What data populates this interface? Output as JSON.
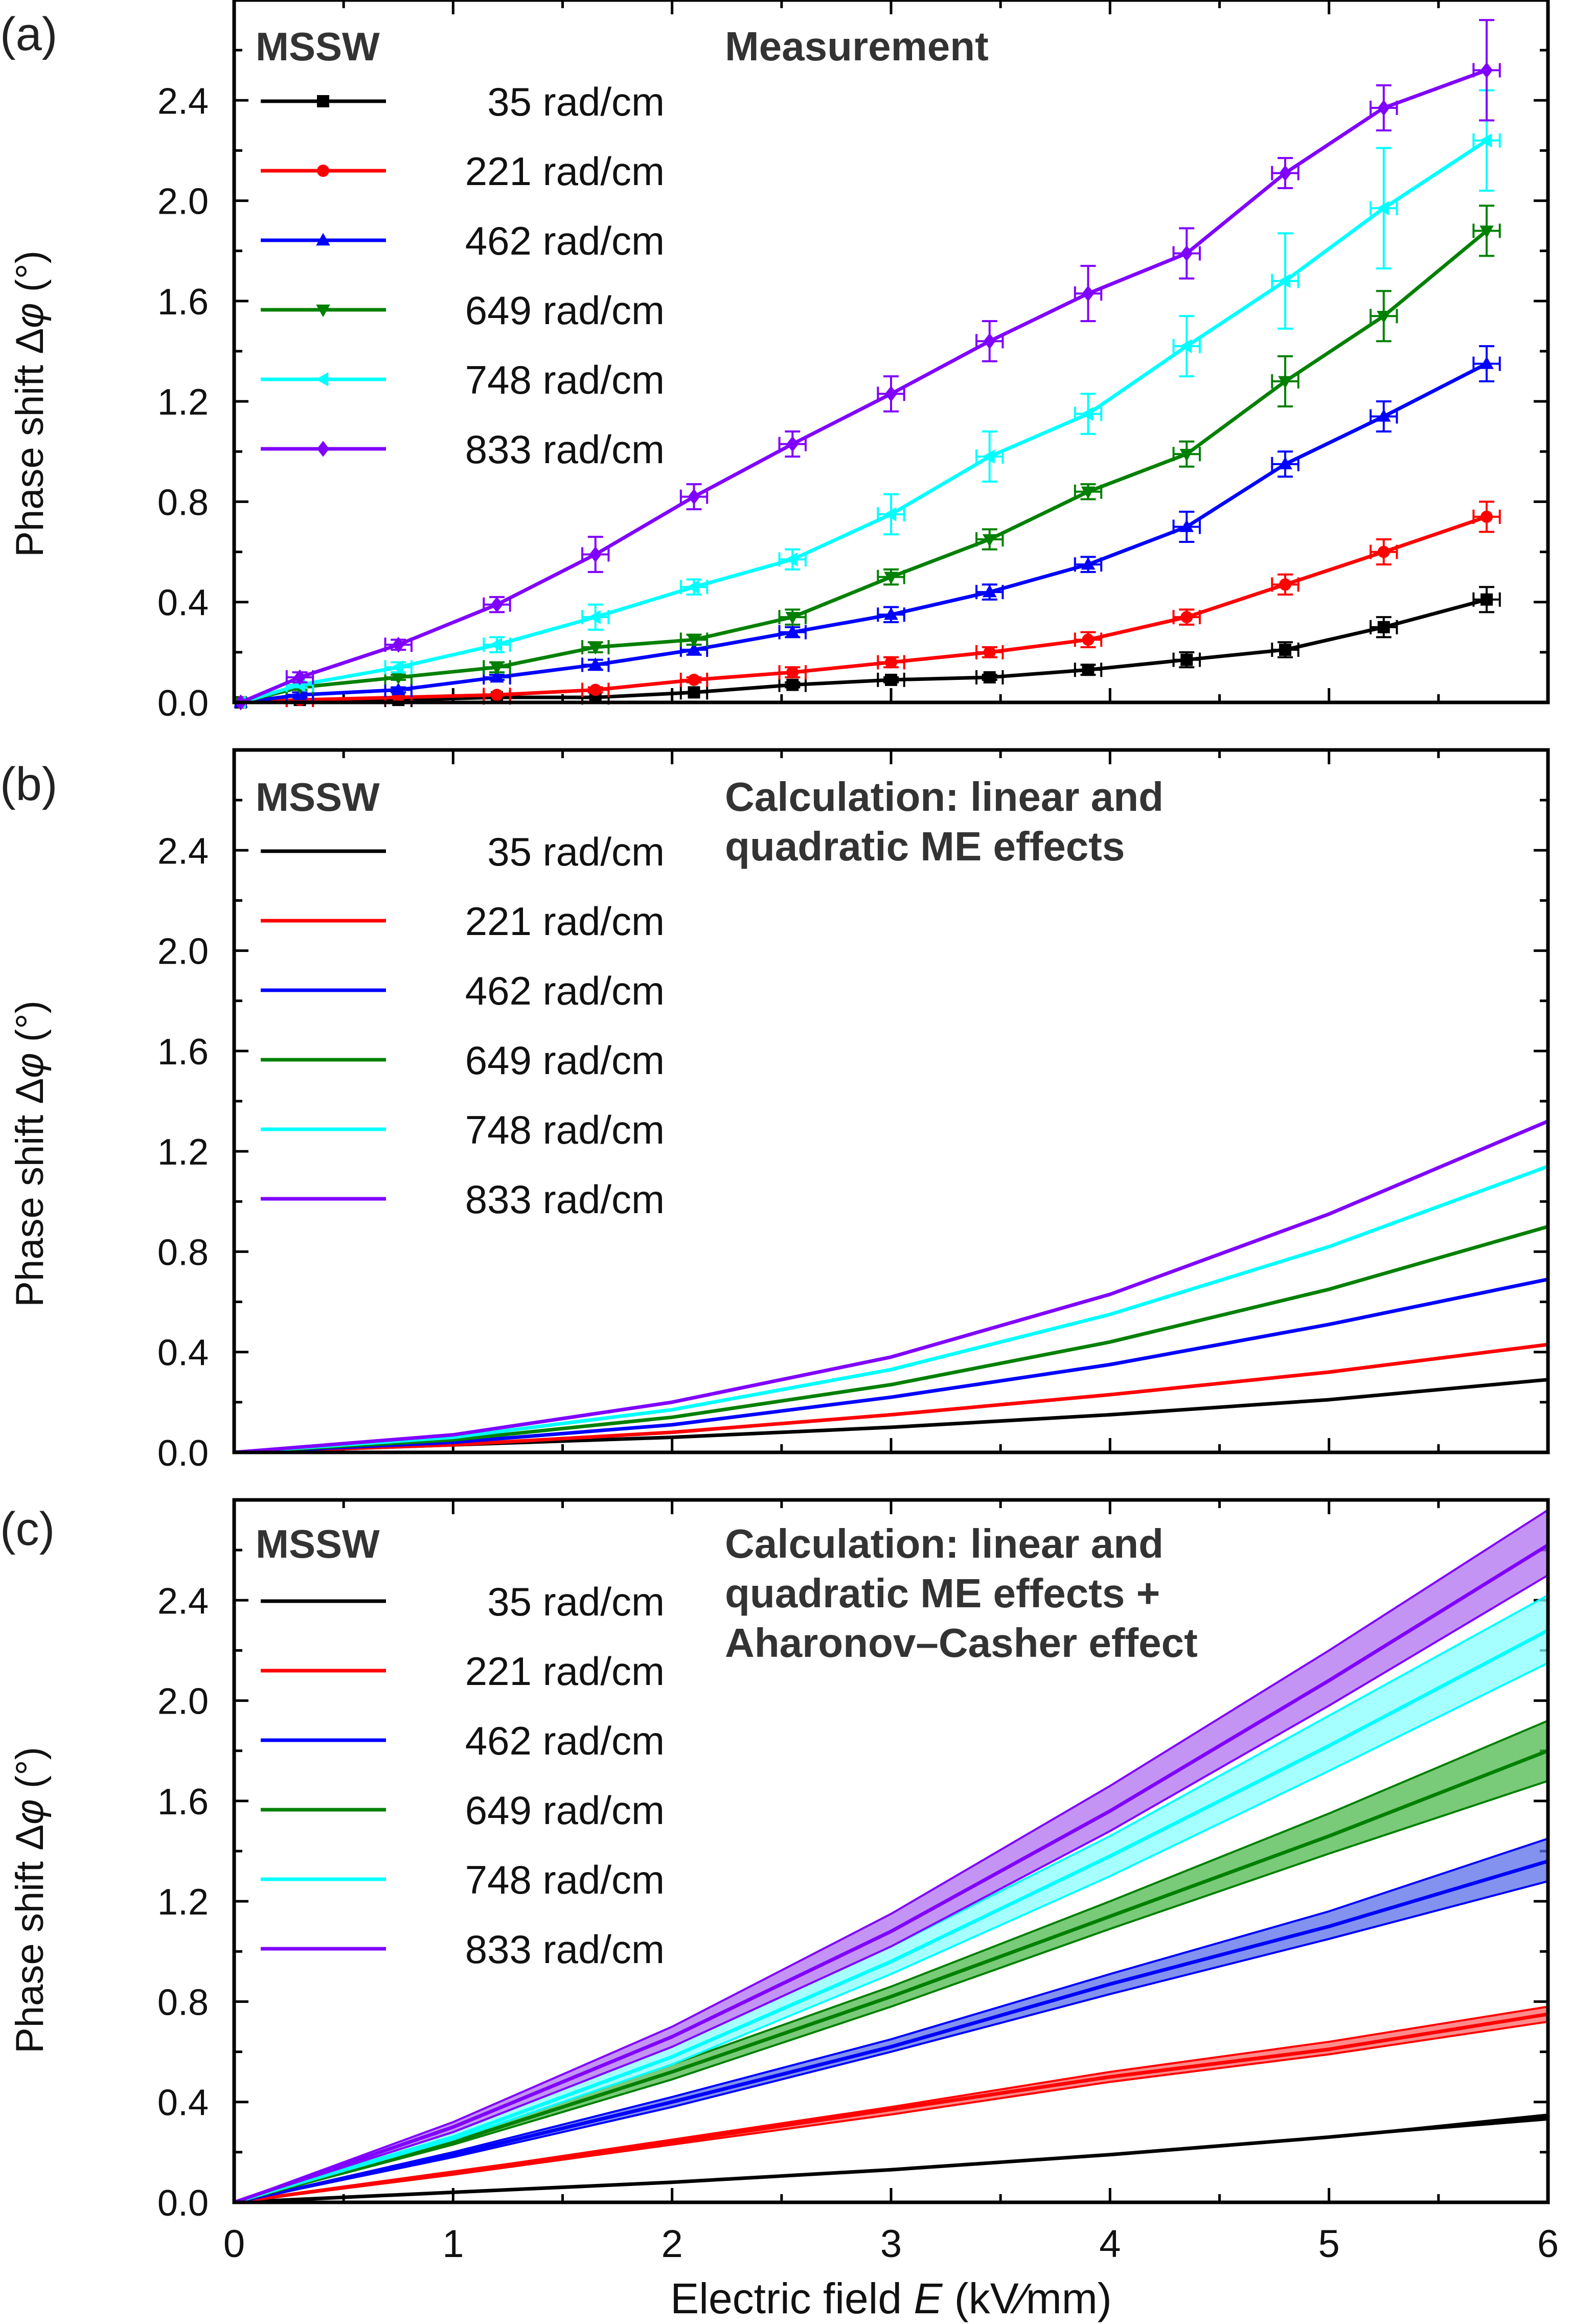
{
  "figure": {
    "xlabel_prefix": "Electric field ",
    "xlabel_var": "E",
    "xlabel_suffix": " (kV∕mm)",
    "ylabel_prefix": "Phase shift Δ",
    "ylabel_var": "φ",
    "ylabel_suffix": " (°)",
    "x_ticks": [
      "0",
      "1",
      "2",
      "3",
      "4",
      "5",
      "6"
    ],
    "y_ticks": [
      "0.0",
      "0.4",
      "0.8",
      "1.2",
      "1.6",
      "2.0",
      "2.4"
    ],
    "wave_label": "MSSW"
  },
  "chart_data": [
    {
      "type": "line",
      "panel": "(a)",
      "title": "Measurement",
      "xlim": [
        0,
        6
      ],
      "ylim": [
        0,
        2.8
      ],
      "x": [
        0.03,
        0.3,
        0.75,
        1.2,
        1.65,
        2.1,
        2.55,
        3.0,
        3.45,
        3.9,
        4.35,
        4.8,
        5.25,
        5.72
      ],
      "x_err": 0.06,
      "series": [
        {
          "name": "35 rad/cm",
          "color": "#000000",
          "marker": "square",
          "values": [
            0.0,
            0.01,
            0.01,
            0.02,
            0.02,
            0.04,
            0.07,
            0.09,
            0.1,
            0.13,
            0.17,
            0.21,
            0.3,
            0.41
          ],
          "y_err": [
            0.0,
            0.0,
            0.0,
            0.0,
            0.0,
            0.0,
            0.01,
            0.01,
            0.01,
            0.02,
            0.03,
            0.03,
            0.04,
            0.05
          ]
        },
        {
          "name": "221 rad/cm",
          "color": "#ff0000",
          "marker": "circle",
          "values": [
            0.0,
            0.01,
            0.02,
            0.03,
            0.05,
            0.09,
            0.12,
            0.16,
            0.2,
            0.25,
            0.34,
            0.47,
            0.6,
            0.74
          ],
          "y_err": [
            0.0,
            0.0,
            0.0,
            0.0,
            0.01,
            0.01,
            0.02,
            0.02,
            0.02,
            0.03,
            0.03,
            0.04,
            0.05,
            0.06
          ]
        },
        {
          "name": "462 rad/cm",
          "color": "#0000ff",
          "marker": "triangle-up",
          "values": [
            0.0,
            0.03,
            0.05,
            0.1,
            0.15,
            0.21,
            0.28,
            0.35,
            0.44,
            0.55,
            0.7,
            0.95,
            1.14,
            1.35
          ],
          "y_err": [
            0.0,
            0.01,
            0.01,
            0.01,
            0.02,
            0.02,
            0.02,
            0.03,
            0.03,
            0.03,
            0.06,
            0.05,
            0.06,
            0.07
          ]
        },
        {
          "name": "649 rad/cm",
          "color": "#008000",
          "marker": "triangle-down",
          "values": [
            0.0,
            0.06,
            0.1,
            0.14,
            0.22,
            0.25,
            0.34,
            0.5,
            0.65,
            0.84,
            0.99,
            1.28,
            1.54,
            1.88
          ],
          "y_err": [
            0.0,
            0.01,
            0.01,
            0.02,
            0.02,
            0.02,
            0.03,
            0.03,
            0.04,
            0.03,
            0.05,
            0.1,
            0.1,
            0.1
          ]
        },
        {
          "name": "748 rad/cm",
          "color": "#00ffff",
          "marker": "triangle-left",
          "values": [
            0.0,
            0.07,
            0.14,
            0.23,
            0.34,
            0.46,
            0.57,
            0.75,
            0.98,
            1.15,
            1.42,
            1.68,
            1.97,
            2.24
          ],
          "y_err": [
            0.0,
            0.01,
            0.02,
            0.03,
            0.05,
            0.03,
            0.04,
            0.08,
            0.1,
            0.08,
            0.12,
            0.19,
            0.24,
            0.2
          ]
        },
        {
          "name": "833 rad/cm",
          "color": "#8000ff",
          "marker": "diamond",
          "values": [
            0.0,
            0.1,
            0.23,
            0.39,
            0.59,
            0.82,
            1.03,
            1.23,
            1.44,
            1.63,
            1.79,
            2.11,
            2.37,
            2.52
          ],
          "y_err": [
            0.0,
            0.02,
            0.02,
            0.03,
            0.07,
            0.05,
            0.05,
            0.07,
            0.08,
            0.11,
            0.1,
            0.06,
            0.09,
            0.2
          ]
        }
      ]
    },
    {
      "type": "line",
      "panel": "(b)",
      "title_lines": [
        "Calculation: linear and",
        "quadratic ME effects"
      ],
      "xlim": [
        0,
        6
      ],
      "ylim": [
        0,
        2.8
      ],
      "x": [
        0,
        1,
        2,
        3,
        4,
        5,
        6
      ],
      "series": [
        {
          "name": "35 rad/cm",
          "color": "#000000",
          "values": [
            0.0,
            0.03,
            0.06,
            0.1,
            0.15,
            0.21,
            0.29
          ]
        },
        {
          "name": "221 rad/cm",
          "color": "#ff0000",
          "values": [
            0.0,
            0.03,
            0.08,
            0.15,
            0.23,
            0.32,
            0.43
          ]
        },
        {
          "name": "462 rad/cm",
          "color": "#0000ff",
          "values": [
            0.0,
            0.04,
            0.11,
            0.22,
            0.35,
            0.51,
            0.69
          ]
        },
        {
          "name": "649 rad/cm",
          "color": "#008000",
          "values": [
            0.0,
            0.05,
            0.14,
            0.27,
            0.44,
            0.65,
            0.9
          ]
        },
        {
          "name": "748 rad/cm",
          "color": "#00ffff",
          "values": [
            0.0,
            0.06,
            0.17,
            0.33,
            0.55,
            0.82,
            1.14
          ]
        },
        {
          "name": "833 rad/cm",
          "color": "#8000ff",
          "values": [
            0.0,
            0.07,
            0.2,
            0.38,
            0.63,
            0.95,
            1.32
          ]
        }
      ]
    },
    {
      "type": "area",
      "panel": "(c)",
      "title_lines": [
        "Calculation: linear and",
        "quadratic ME effects +",
        "Aharonov–Casher effect"
      ],
      "xlim": [
        0,
        6
      ],
      "ylim": [
        0,
        2.8
      ],
      "x": [
        0,
        1,
        2,
        3,
        4,
        5,
        6
      ],
      "series": [
        {
          "name": "35 rad/cm",
          "color": "#000000",
          "fill": "#000000",
          "values": [
            0.0,
            0.04,
            0.08,
            0.13,
            0.19,
            0.26,
            0.34
          ],
          "lower": [
            0.0,
            0.04,
            0.08,
            0.13,
            0.19,
            0.26,
            0.33
          ],
          "upper": [
            0.0,
            0.04,
            0.08,
            0.13,
            0.19,
            0.26,
            0.35
          ]
        },
        {
          "name": "221 rad/cm",
          "color": "#ff0000",
          "fill": "#ff6464",
          "values": [
            0.0,
            0.12,
            0.24,
            0.37,
            0.5,
            0.61,
            0.75
          ],
          "lower": [
            0.0,
            0.11,
            0.23,
            0.35,
            0.48,
            0.59,
            0.72
          ],
          "upper": [
            0.0,
            0.12,
            0.25,
            0.38,
            0.52,
            0.64,
            0.78
          ]
        },
        {
          "name": "462 rad/cm",
          "color": "#0000ff",
          "fill": "#5a6ee8",
          "values": [
            0.0,
            0.19,
            0.4,
            0.62,
            0.87,
            1.1,
            1.36
          ],
          "lower": [
            0.0,
            0.18,
            0.38,
            0.6,
            0.83,
            1.05,
            1.28
          ],
          "upper": [
            0.0,
            0.2,
            0.42,
            0.65,
            0.91,
            1.16,
            1.45
          ]
        },
        {
          "name": "649 rad/cm",
          "color": "#008000",
          "fill": "#4cb84c",
          "values": [
            0.0,
            0.24,
            0.52,
            0.82,
            1.14,
            1.46,
            1.8
          ],
          "lower": [
            0.0,
            0.23,
            0.49,
            0.78,
            1.09,
            1.39,
            1.68
          ],
          "upper": [
            0.0,
            0.25,
            0.55,
            0.86,
            1.2,
            1.55,
            1.92
          ]
        },
        {
          "name": "748 rad/cm",
          "color": "#00ffff",
          "fill": "#88ffff",
          "values": [
            0.0,
            0.26,
            0.58,
            0.96,
            1.38,
            1.82,
            2.28
          ],
          "lower": [
            0.0,
            0.25,
            0.55,
            0.91,
            1.3,
            1.72,
            2.15
          ],
          "upper": [
            0.0,
            0.28,
            0.62,
            1.02,
            1.46,
            1.94,
            2.42
          ]
        },
        {
          "name": "833 rad/cm",
          "color": "#8000ff",
          "fill": "#b070f0",
          "values": [
            0.0,
            0.3,
            0.66,
            1.08,
            1.56,
            2.08,
            2.62
          ],
          "lower": [
            0.0,
            0.28,
            0.62,
            1.02,
            1.48,
            1.98,
            2.5
          ],
          "upper": [
            0.0,
            0.32,
            0.7,
            1.15,
            1.66,
            2.2,
            2.76
          ]
        }
      ]
    }
  ]
}
